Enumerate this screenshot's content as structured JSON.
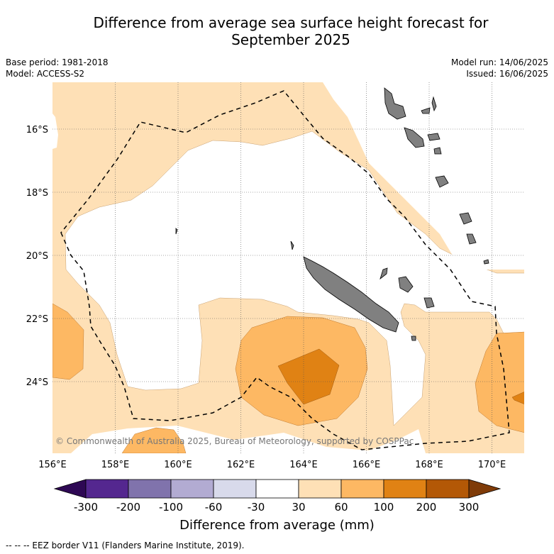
{
  "header": {
    "title_line1": "Difference from average sea surface height forecast for",
    "title_line2": "September 2025"
  },
  "meta": {
    "base_period": "Base period: 1981-2018",
    "model": "Model: ACCESS-S2",
    "model_run": "Model run: 14/06/2025",
    "issued": "Issued: 16/06/2025"
  },
  "map": {
    "lon_ticks": [
      "156°E",
      "158°E",
      "160°E",
      "162°E",
      "164°E",
      "166°E",
      "168°E",
      "170°E"
    ],
    "lat_ticks": [
      "16°S",
      "18°S",
      "20°S",
      "22°S",
      "24°S"
    ],
    "copyright": "© Commonwealth of Australia 2025, Bureau of Meteorology, supported by COSPPac"
  },
  "colorbar": {
    "title": "Difference from average (mm)",
    "ticks": [
      "-300",
      "-200",
      "-100",
      "-60",
      "-30",
      "30",
      "60",
      "100",
      "200",
      "300"
    ],
    "colors": [
      "#2e0854",
      "#54278f",
      "#8073ac",
      "#b2abd2",
      "#d8daeb",
      "#ffffff",
      "#fee0b6",
      "#fdb863",
      "#e08214",
      "#b35806",
      "#7f3b08"
    ]
  },
  "footnote": "--  --  -- EEZ border V11 (Flanders Marine Institute, 2019)."
}
